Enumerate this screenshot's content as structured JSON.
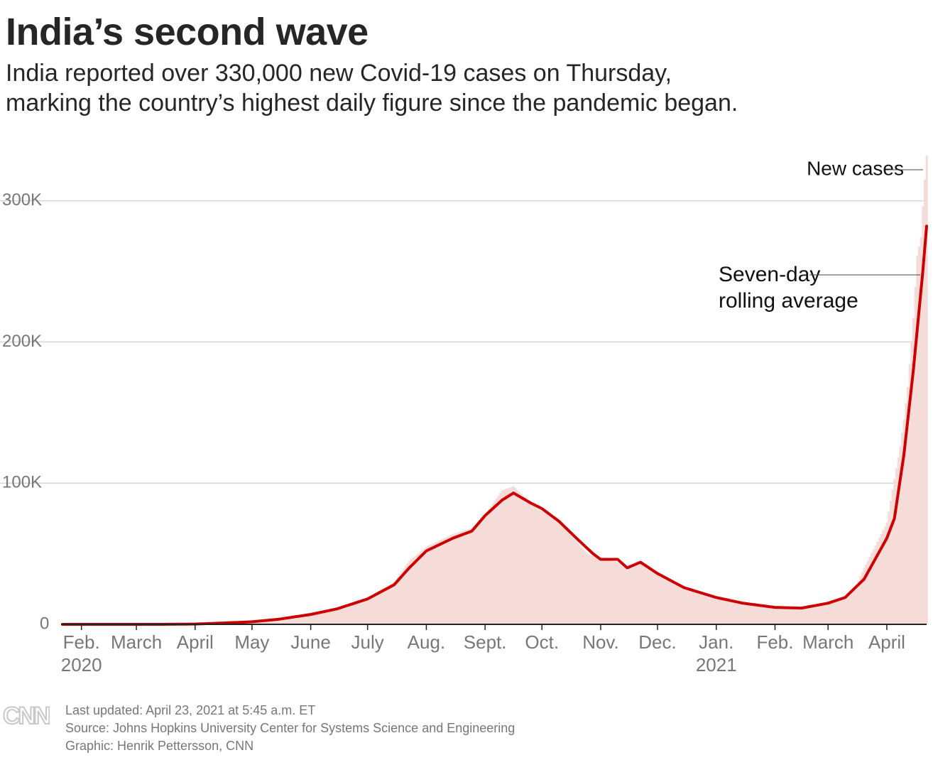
{
  "header": {
    "title": "India’s second wave",
    "subtitle_line1": "India reported over 330,000 new Covid-19 cases on Thursday,",
    "subtitle_line2": "marking the country’s highest daily figure since the pandemic began."
  },
  "footer": {
    "updated": "Last updated: April 23, 2021 at 5:45 a.m. ET",
    "source": "Source: Johns Hopkins University Center for Systems Science and Engineering",
    "credit": "Graphic: Henrik Pettersson, CNN",
    "logo_text": "CNN"
  },
  "colors": {
    "bars": "#f5dcd8",
    "line": "#cc0000",
    "grid": "#d6d6d6",
    "axis_text": "#777777",
    "logo": "#c8c8c8"
  },
  "chart_data": {
    "type": "bar",
    "x_start": "2020-01-22",
    "x_end": "2021-04-22",
    "ylim": [
      0,
      330000
    ],
    "grid": true,
    "y_ticks": [
      {
        "value": 0,
        "label": "0"
      },
      {
        "value": 100000,
        "label": "100K"
      },
      {
        "value": 200000,
        "label": "200K"
      },
      {
        "value": 300000,
        "label": "300K"
      }
    ],
    "x_ticks": [
      {
        "date": "2020-02-01",
        "label": "Feb.",
        "sub": "2020"
      },
      {
        "date": "2020-03-01",
        "label": "March"
      },
      {
        "date": "2020-04-01",
        "label": "April"
      },
      {
        "date": "2020-05-01",
        "label": "May"
      },
      {
        "date": "2020-06-01",
        "label": "June"
      },
      {
        "date": "2020-07-01",
        "label": "July"
      },
      {
        "date": "2020-08-01",
        "label": "Aug."
      },
      {
        "date": "2020-09-01",
        "label": "Sept."
      },
      {
        "date": "2020-10-01",
        "label": "Oct."
      },
      {
        "date": "2020-11-01",
        "label": "Nov."
      },
      {
        "date": "2020-12-01",
        "label": "Dec."
      },
      {
        "date": "2021-01-01",
        "label": "Jan.",
        "sub": "2021"
      },
      {
        "date": "2021-02-01",
        "label": "Feb."
      },
      {
        "date": "2021-03-01",
        "label": "March"
      },
      {
        "date": "2021-04-01",
        "label": "April"
      }
    ],
    "annotations": [
      {
        "series": "new_cases",
        "text": "New cases",
        "date": "2021-04-22"
      },
      {
        "series": "rolling_avg",
        "text_lines": [
          "Seven-day",
          "rolling average"
        ],
        "date": "2021-04-20"
      }
    ],
    "series": [
      {
        "name": "New cases",
        "key": "new_cases",
        "kind": "bar",
        "points": [
          [
            "2020-01-22",
            0
          ],
          [
            "2020-03-01",
            0
          ],
          [
            "2020-03-15",
            30
          ],
          [
            "2020-04-01",
            400
          ],
          [
            "2020-04-15",
            1100
          ],
          [
            "2020-05-01",
            2000
          ],
          [
            "2020-05-15",
            3800
          ],
          [
            "2020-06-01",
            8300
          ],
          [
            "2020-06-15",
            11500
          ],
          [
            "2020-07-01",
            19000
          ],
          [
            "2020-07-15",
            30000
          ],
          [
            "2020-07-23",
            45000
          ],
          [
            "2020-08-01",
            55000
          ],
          [
            "2020-08-15",
            64000
          ],
          [
            "2020-08-25",
            68000
          ],
          [
            "2020-09-01",
            78000
          ],
          [
            "2020-09-10",
            95000
          ],
          [
            "2020-09-16",
            97800
          ],
          [
            "2020-09-25",
            86000
          ],
          [
            "2020-10-01",
            80000
          ],
          [
            "2020-10-10",
            74000
          ],
          [
            "2020-10-15",
            65000
          ],
          [
            "2020-10-25",
            50000
          ],
          [
            "2020-11-01",
            46000
          ],
          [
            "2020-11-10",
            44000
          ],
          [
            "2020-11-15",
            38000
          ],
          [
            "2020-11-20",
            45000
          ],
          [
            "2020-12-01",
            36000
          ],
          [
            "2020-12-15",
            25000
          ],
          [
            "2021-01-01",
            19000
          ],
          [
            "2021-01-15",
            15500
          ],
          [
            "2021-02-01",
            12500
          ],
          [
            "2021-02-15",
            11500
          ],
          [
            "2021-03-01",
            16000
          ],
          [
            "2021-03-10",
            20000
          ],
          [
            "2021-03-15",
            25000
          ],
          [
            "2021-03-20",
            40000
          ],
          [
            "2021-03-25",
            53000
          ],
          [
            "2021-04-01",
            72000
          ],
          [
            "2021-04-05",
            103000
          ],
          [
            "2021-04-08",
            126000
          ],
          [
            "2021-04-10",
            145000
          ],
          [
            "2021-04-12",
            168000
          ],
          [
            "2021-04-15",
            217000
          ],
          [
            "2021-04-17",
            261000
          ],
          [
            "2021-04-19",
            274000
          ],
          [
            "2021-04-20",
            296000
          ],
          [
            "2021-04-21",
            315000
          ],
          [
            "2021-04-22",
            332000
          ]
        ]
      },
      {
        "name": "Seven-day rolling average",
        "key": "rolling_avg",
        "kind": "line",
        "points": [
          [
            "2020-01-22",
            0
          ],
          [
            "2020-03-01",
            0
          ],
          [
            "2020-03-15",
            20
          ],
          [
            "2020-04-01",
            200
          ],
          [
            "2020-04-15",
            900
          ],
          [
            "2020-05-01",
            1800
          ],
          [
            "2020-05-15",
            3600
          ],
          [
            "2020-06-01",
            7000
          ],
          [
            "2020-06-15",
            11000
          ],
          [
            "2020-07-01",
            18000
          ],
          [
            "2020-07-15",
            28000
          ],
          [
            "2020-07-23",
            40000
          ],
          [
            "2020-08-01",
            52000
          ],
          [
            "2020-08-15",
            61000
          ],
          [
            "2020-08-25",
            66000
          ],
          [
            "2020-09-01",
            77000
          ],
          [
            "2020-09-10",
            88000
          ],
          [
            "2020-09-16",
            93000
          ],
          [
            "2020-09-25",
            86000
          ],
          [
            "2020-10-01",
            82000
          ],
          [
            "2020-10-10",
            73000
          ],
          [
            "2020-10-20",
            60000
          ],
          [
            "2020-10-28",
            50000
          ],
          [
            "2020-11-01",
            46000
          ],
          [
            "2020-11-10",
            46000
          ],
          [
            "2020-11-15",
            40000
          ],
          [
            "2020-11-22",
            44000
          ],
          [
            "2020-12-01",
            36000
          ],
          [
            "2020-12-15",
            26000
          ],
          [
            "2021-01-01",
            19000
          ],
          [
            "2021-01-15",
            15000
          ],
          [
            "2021-02-01",
            12000
          ],
          [
            "2021-02-15",
            11500
          ],
          [
            "2021-03-01",
            15000
          ],
          [
            "2021-03-10",
            19000
          ],
          [
            "2021-03-20",
            32000
          ],
          [
            "2021-04-01",
            61000
          ],
          [
            "2021-04-05",
            75000
          ],
          [
            "2021-04-10",
            120000
          ],
          [
            "2021-04-15",
            180000
          ],
          [
            "2021-04-20",
            250000
          ],
          [
            "2021-04-22",
            282000
          ]
        ]
      }
    ]
  }
}
